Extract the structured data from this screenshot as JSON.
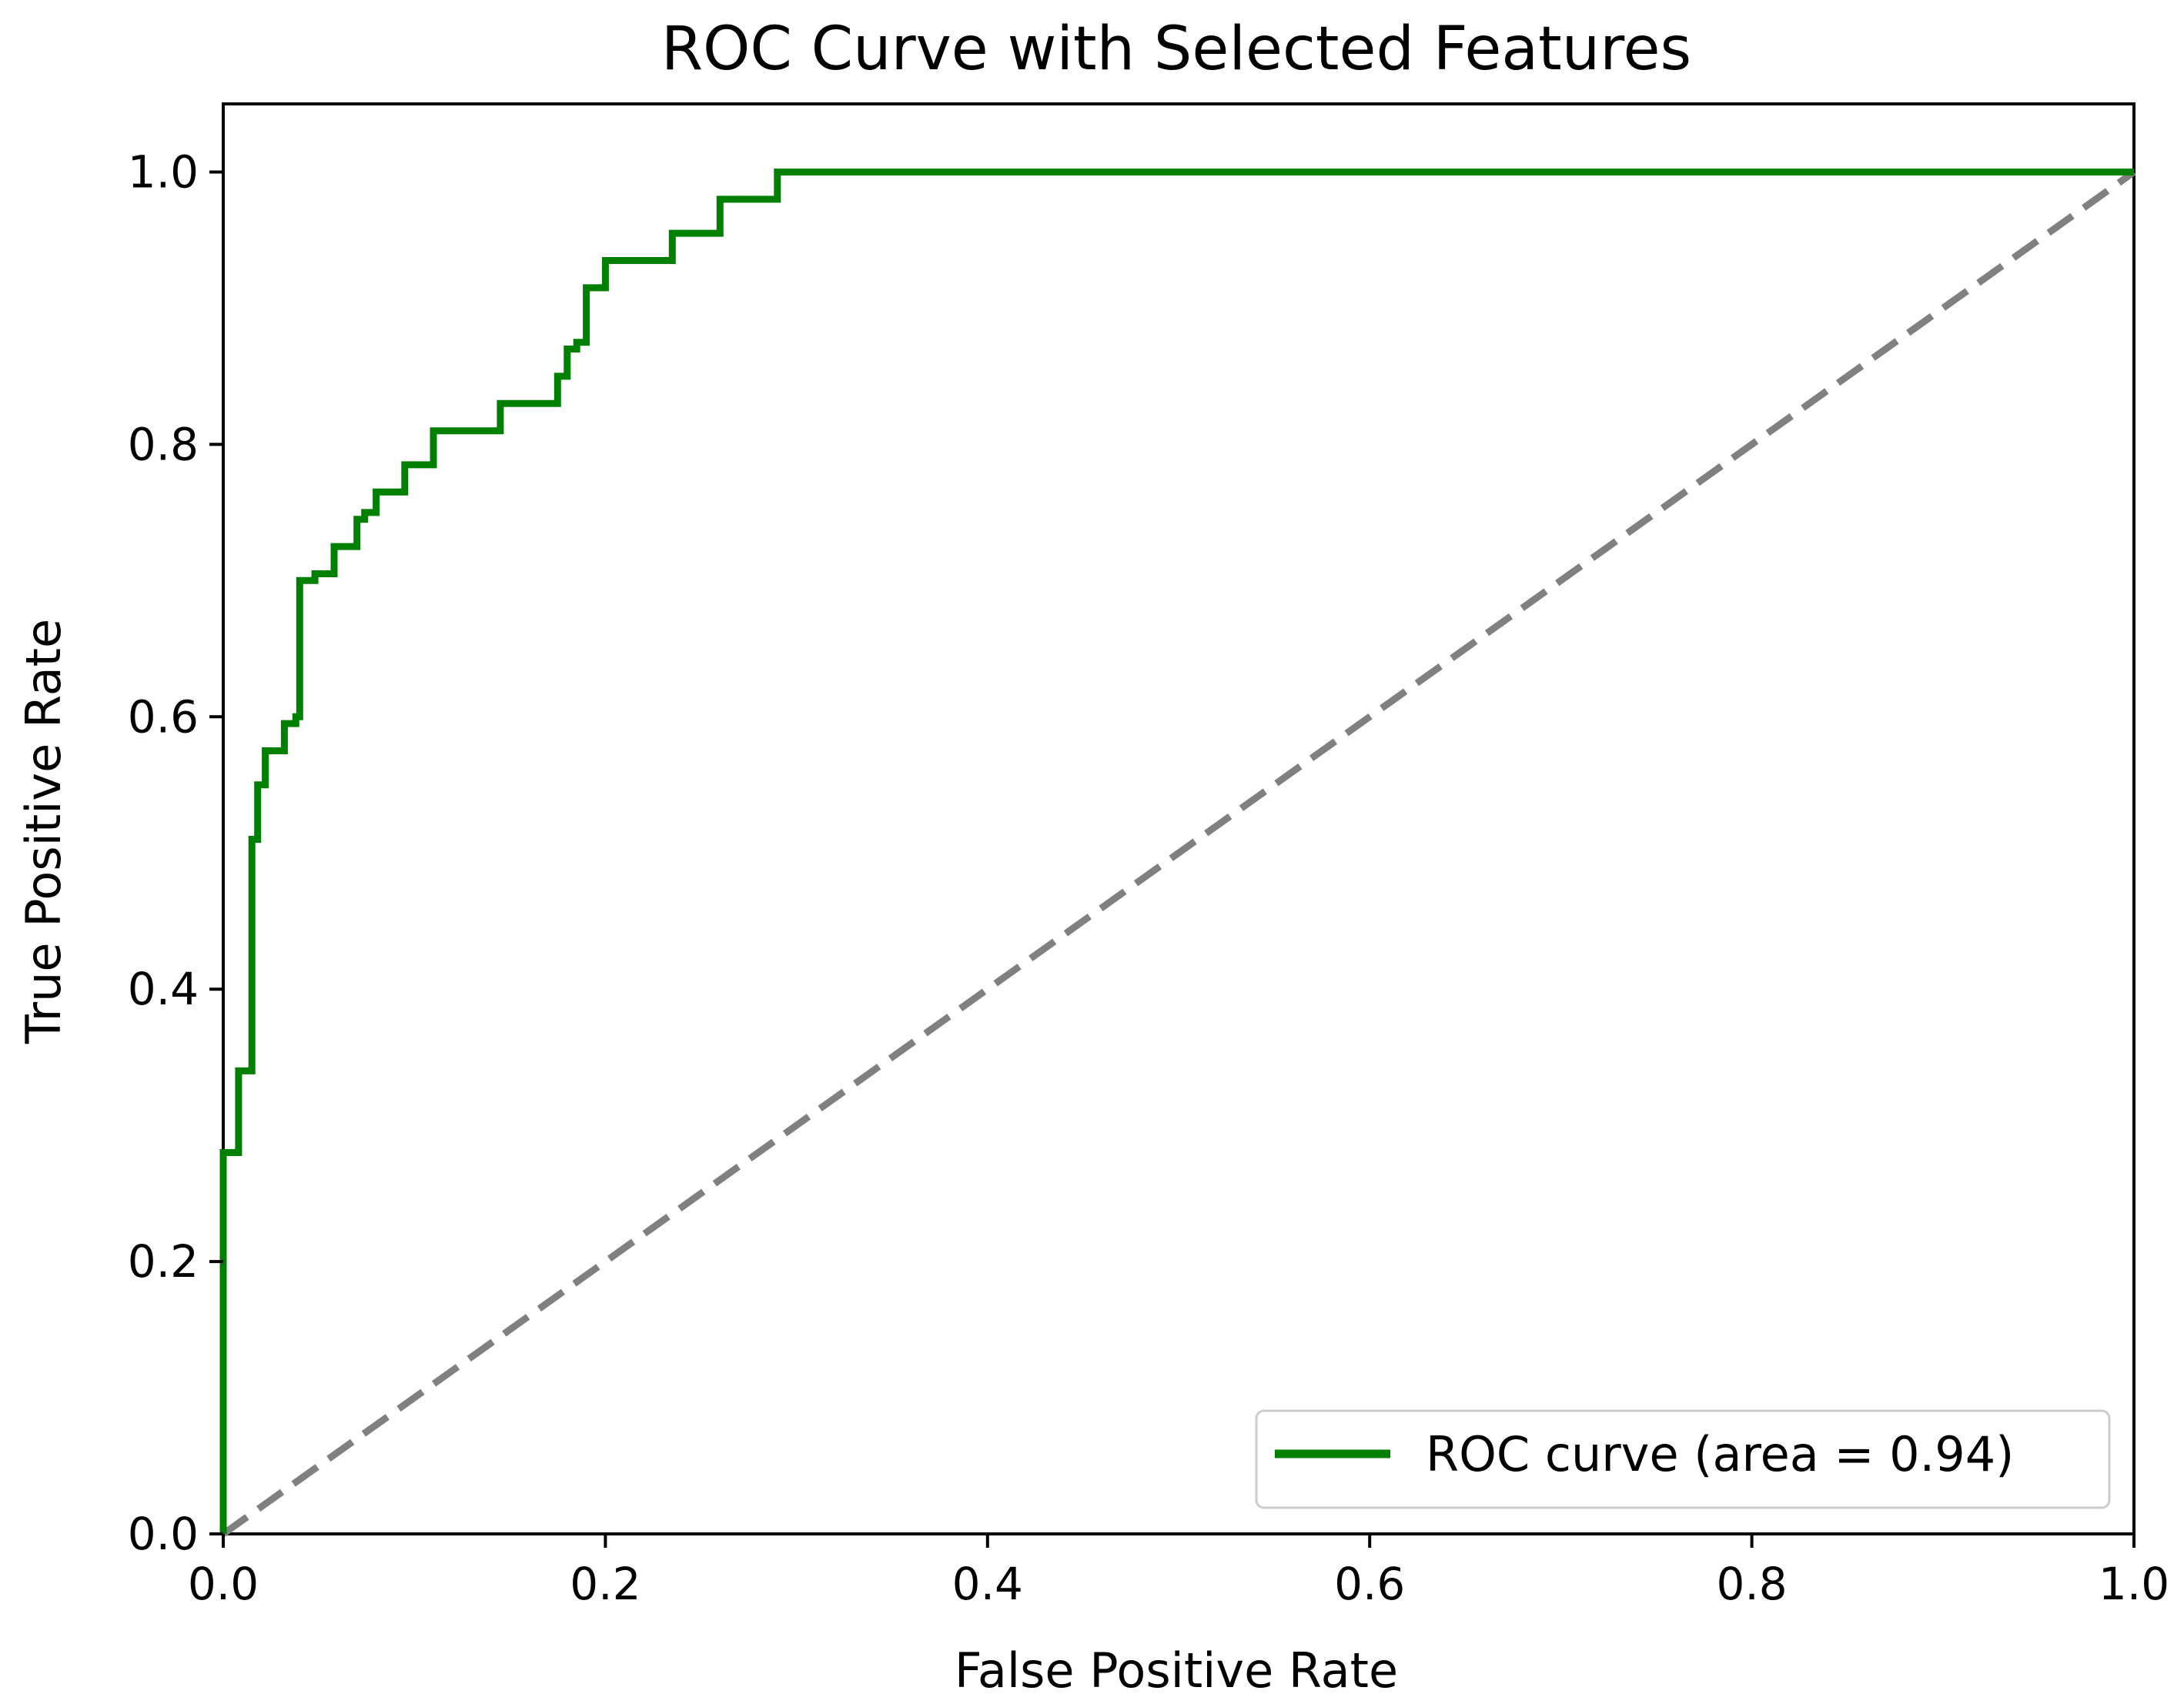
{
  "chart_data": {
    "type": "line",
    "title": "ROC Curve with Selected Features",
    "xlabel": "False Positive Rate",
    "ylabel": "True Positive Rate",
    "xlim": [
      0.0,
      1.0
    ],
    "ylim": [
      0.0,
      1.05
    ],
    "xticks": [
      "0.0",
      "0.2",
      "0.4",
      "0.6",
      "0.8",
      "1.0"
    ],
    "yticks": [
      "0.0",
      "0.2",
      "0.4",
      "0.6",
      "0.8",
      "1.0"
    ],
    "grid": false,
    "legend_position": "lower-right",
    "series": [
      {
        "name": "ROC curve (area = 0.94)",
        "color": "#008000",
        "style": "solid",
        "x": [
          0.0,
          0.0,
          0.008,
          0.008,
          0.015,
          0.015,
          0.018,
          0.018,
          0.022,
          0.022,
          0.032,
          0.032,
          0.038,
          0.038,
          0.04,
          0.04,
          0.048,
          0.048,
          0.058,
          0.058,
          0.07,
          0.07,
          0.074,
          0.074,
          0.08,
          0.08,
          0.095,
          0.095,
          0.11,
          0.11,
          0.145,
          0.145,
          0.175,
          0.175,
          0.18,
          0.18,
          0.185,
          0.185,
          0.19,
          0.19,
          0.2,
          0.2,
          0.235,
          0.235,
          0.26,
          0.26,
          0.29,
          0.29,
          1.0
        ],
        "y": [
          0.0,
          0.28,
          0.28,
          0.34,
          0.34,
          0.51,
          0.51,
          0.55,
          0.55,
          0.575,
          0.575,
          0.595,
          0.595,
          0.6,
          0.6,
          0.7,
          0.7,
          0.705,
          0.705,
          0.725,
          0.725,
          0.745,
          0.745,
          0.75,
          0.75,
          0.765,
          0.765,
          0.785,
          0.785,
          0.81,
          0.81,
          0.83,
          0.83,
          0.85,
          0.85,
          0.87,
          0.87,
          0.875,
          0.875,
          0.915,
          0.915,
          0.935,
          0.935,
          0.955,
          0.955,
          0.98,
          0.98,
          1.0,
          1.0
        ]
      },
      {
        "name": "",
        "color": "#808080",
        "style": "dashed",
        "x": [
          0.0,
          1.0
        ],
        "y": [
          0.0,
          1.0
        ]
      }
    ],
    "legend_entries": [
      "ROC curve (area = 0.94)"
    ]
  }
}
